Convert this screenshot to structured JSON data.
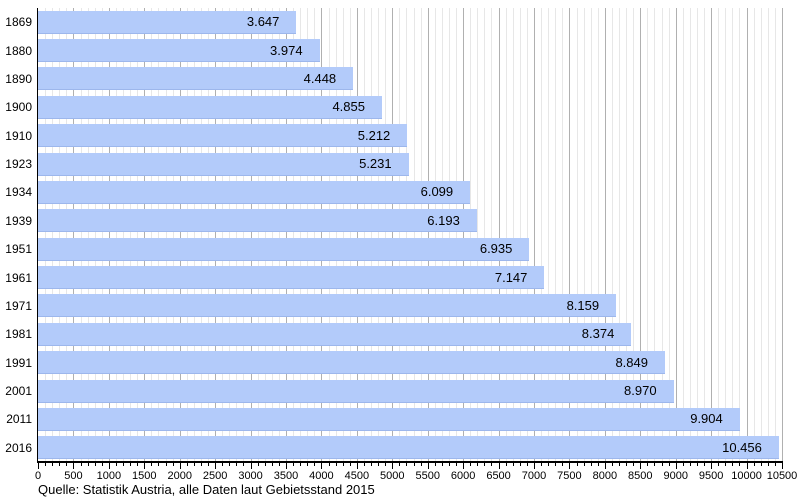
{
  "chart_data": {
    "type": "bar",
    "orientation": "horizontal",
    "title": "",
    "categories": [
      "1869",
      "1880",
      "1890",
      "1900",
      "1910",
      "1923",
      "1934",
      "1939",
      "1951",
      "1961",
      "1971",
      "1981",
      "1991",
      "2001",
      "2011",
      "2016"
    ],
    "values": [
      3647,
      3974,
      4448,
      4855,
      5212,
      5231,
      6099,
      6193,
      6935,
      7147,
      8159,
      8374,
      8849,
      8970,
      9904,
      10456
    ],
    "value_labels": [
      "3.647",
      "3.974",
      "4.448",
      "4.855",
      "5.212",
      "5.231",
      "6.099",
      "6.193",
      "6.935",
      "7.147",
      "8.159",
      "8.374",
      "8.849",
      "8.970",
      "9.904",
      "10.456"
    ],
    "xlim": [
      0,
      10500
    ],
    "x_tick_step_major": 500,
    "x_tick_step_minor": 100,
    "x_tick_labels": [
      "0",
      "500",
      "1000",
      "1500",
      "2000",
      "2500",
      "3000",
      "3500",
      "4000",
      "4500",
      "5000",
      "5500",
      "6000",
      "6500",
      "7000",
      "7500",
      "8000",
      "8500",
      "9000",
      "9500",
      "10000",
      "10500"
    ],
    "grid": "vertical; minor every 100, major every 500",
    "legend": "none",
    "source": "Quelle: Statistik Austria, alle Daten laut Gebietsstand 2015",
    "colors": {
      "bar_fill": "#b3cbfa",
      "bar_edge": "#9db7ec",
      "grid_minor": "#e7e7e7",
      "grid_major": "#b0b0b0",
      "axis": "#000000",
      "text": "#000000",
      "background": "#ffffff"
    }
  }
}
